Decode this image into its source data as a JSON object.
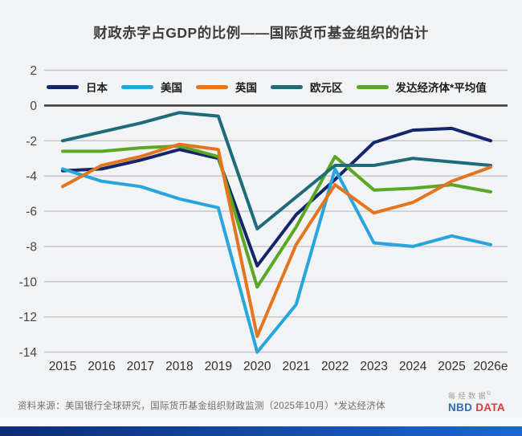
{
  "page": {
    "background": "#f2f3f4",
    "accent_bar_from": "#0c2b78",
    "accent_bar_to": "#1a67d6"
  },
  "title": "财政赤字占GDP的比例——国际货币基金组织的估计",
  "footer": {
    "source": "资料来源：美国银行全球研究，国际货币基金组织财政监测（2025年10月）*发达经济体",
    "logo": {
      "cn_name": "每经数据",
      "copyright": "©",
      "brand_blue": "NBD",
      "brand_red": "DATA",
      "blue_color": "#2e6cb5",
      "red_color": "#d23f3b"
    }
  },
  "chart_data": {
    "type": "line",
    "title": "财政赤字占GDP的比例——国际货币基金组织的估计",
    "x": [
      "2015",
      "2016",
      "2017",
      "2018",
      "2019",
      "2020",
      "2021",
      "2022",
      "2023",
      "2024",
      "2025",
      "2026e"
    ],
    "xlabel": "",
    "ylabel": "",
    "ylim": [
      -14,
      2
    ],
    "yticks": [
      2,
      0,
      -2,
      -4,
      -6,
      -8,
      -10,
      -12,
      -14
    ],
    "grid": true,
    "zero_line_emphasized": true,
    "legend_position": "top",
    "grid_color": "#c4c4c6",
    "zero_line_color": "#3f3f3f",
    "tick_label_color": "#454545",
    "series": [
      {
        "name": "日本",
        "color": "#14266b",
        "values": [
          -3.7,
          -3.6,
          -3.1,
          -2.5,
          -3.0,
          -9.1,
          -6.2,
          -4.2,
          -2.1,
          -1.4,
          -1.3,
          -2.0
        ]
      },
      {
        "name": "美国",
        "color": "#29a5de",
        "values": [
          -3.6,
          -4.3,
          -4.6,
          -5.3,
          -5.8,
          -14.0,
          -11.3,
          -3.6,
          -7.8,
          -8.0,
          -7.4,
          -7.9
        ]
      },
      {
        "name": "英国",
        "color": "#e3751f",
        "values": [
          -4.6,
          -3.4,
          -2.9,
          -2.2,
          -2.5,
          -13.1,
          -7.9,
          -4.5,
          -6.1,
          -5.5,
          -4.3,
          -3.5
        ]
      },
      {
        "name": "欧元区",
        "color": "#1e6b7a",
        "values": [
          -2.0,
          -1.5,
          -1.0,
          -0.4,
          -0.6,
          -7.0,
          -5.2,
          -3.4,
          -3.4,
          -3.0,
          -3.2,
          -3.4
        ]
      },
      {
        "name": "发达经济体*平均值",
        "color": "#5aa625",
        "values": [
          -2.6,
          -2.6,
          -2.4,
          -2.3,
          -2.9,
          -10.3,
          -6.9,
          -2.9,
          -4.8,
          -4.7,
          -4.5,
          -4.9
        ]
      }
    ]
  }
}
